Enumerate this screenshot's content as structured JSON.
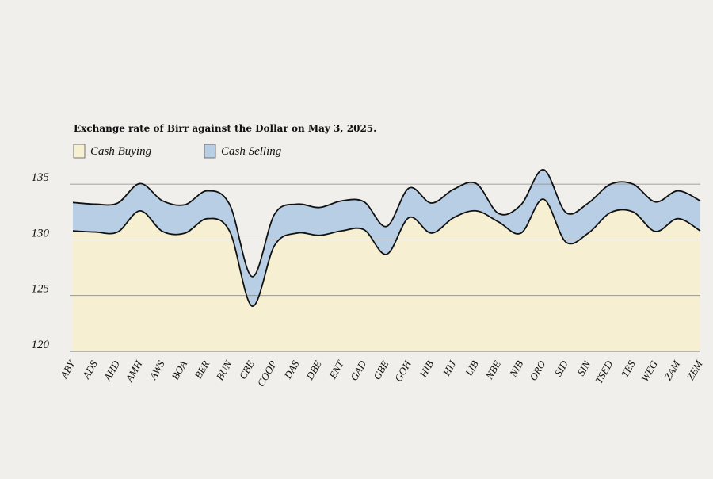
{
  "chart_data": {
    "type": "area",
    "title": "Exchange rate of Birr against the Dollar on May 3, 2025.",
    "categories": [
      "ABY",
      "ADS",
      "AHD",
      "AMH",
      "AWS",
      "BOA",
      "BER",
      "BUN",
      "CBE",
      "COOP",
      "DAS",
      "DBE",
      "ENT",
      "GAD",
      "GBE",
      "GOH",
      "HIB",
      "HIJ",
      "LIB",
      "NBE",
      "NIB",
      "ORO",
      "SID",
      "SIN",
      "TSED",
      "TES",
      "WEG",
      "ZAM",
      "ZEM"
    ],
    "series": [
      {
        "name": "Cash Buying",
        "color": "#f7efd2",
        "values": [
          130.8,
          130.7,
          130.7,
          132.6,
          130.75,
          130.6,
          131.9,
          130.75,
          124.05,
          129.5,
          130.6,
          130.4,
          130.8,
          130.9,
          128.7,
          132.0,
          130.6,
          132.0,
          132.6,
          131.6,
          130.6,
          133.65,
          129.8,
          130.6,
          132.45,
          132.5,
          130.75,
          131.9,
          130.8
        ]
      },
      {
        "name": "Cash Selling",
        "color": "#b8cee5",
        "values": [
          133.35,
          133.2,
          133.3,
          135.05,
          133.5,
          133.15,
          134.4,
          133.15,
          126.7,
          132.3,
          133.2,
          132.9,
          133.5,
          133.4,
          131.2,
          134.65,
          133.3,
          134.55,
          135.05,
          132.35,
          133.15,
          136.3,
          132.45,
          133.3,
          135.0,
          135.0,
          133.4,
          134.4,
          133.5
        ]
      }
    ],
    "ylim": [
      120,
      137
    ],
    "yticks": [
      120,
      125,
      130,
      135
    ],
    "grid": true
  }
}
